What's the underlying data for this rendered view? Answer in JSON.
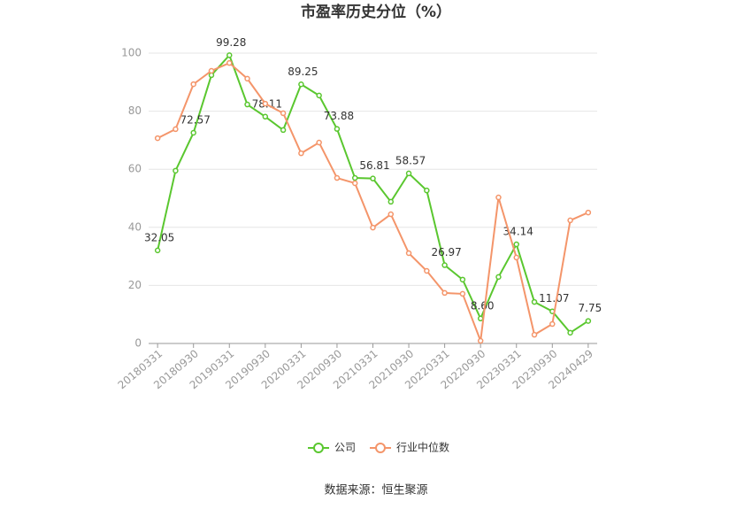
{
  "chart_data": {
    "type": "line",
    "title": "市盈率历史分位（%）",
    "source": "数据来源：恒生聚源",
    "categories": [
      "20180331",
      null,
      "20180930",
      null,
      "20190331",
      null,
      "20190930",
      null,
      "20200331",
      null,
      "20200930",
      null,
      "20210331",
      null,
      "20210930",
      null,
      "20220331",
      null,
      "20220930",
      null,
      "20230331",
      null,
      "20230930",
      null,
      "20240429"
    ],
    "series": [
      {
        "name": "公司",
        "color": "#5ac72f",
        "values": [
          32.05,
          59.5,
          72.57,
          92.4,
          99.28,
          82.3,
          78.11,
          73.5,
          89.25,
          85.4,
          73.88,
          57.0,
          56.81,
          48.8,
          58.57,
          52.7,
          26.97,
          22.0,
          8.6,
          22.9,
          34.14,
          14.3,
          11.07,
          3.7,
          7.75
        ],
        "value_labels": [
          "32.05",
          null,
          "72.57",
          null,
          "99.28",
          null,
          "78.11",
          null,
          "89.25",
          null,
          "73.88",
          null,
          "56.81",
          null,
          "58.57",
          null,
          "26.97",
          null,
          "8.60",
          null,
          "34.14",
          null,
          "11.07",
          null,
          "7.75"
        ]
      },
      {
        "name": "行业中位数",
        "color": "#f4956a",
        "values": [
          70.7,
          73.8,
          89.3,
          93.9,
          96.6,
          91.2,
          82.6,
          79.3,
          65.5,
          69.2,
          57.0,
          55.2,
          39.9,
          44.5,
          31.1,
          25.0,
          17.4,
          17.1,
          0.9,
          50.3,
          29.6,
          3.0,
          6.7,
          42.4,
          45.1
        ]
      }
    ],
    "ylim": [
      0,
      100
    ],
    "yticks": [
      0,
      20,
      40,
      60,
      80,
      100
    ],
    "grid": true
  }
}
